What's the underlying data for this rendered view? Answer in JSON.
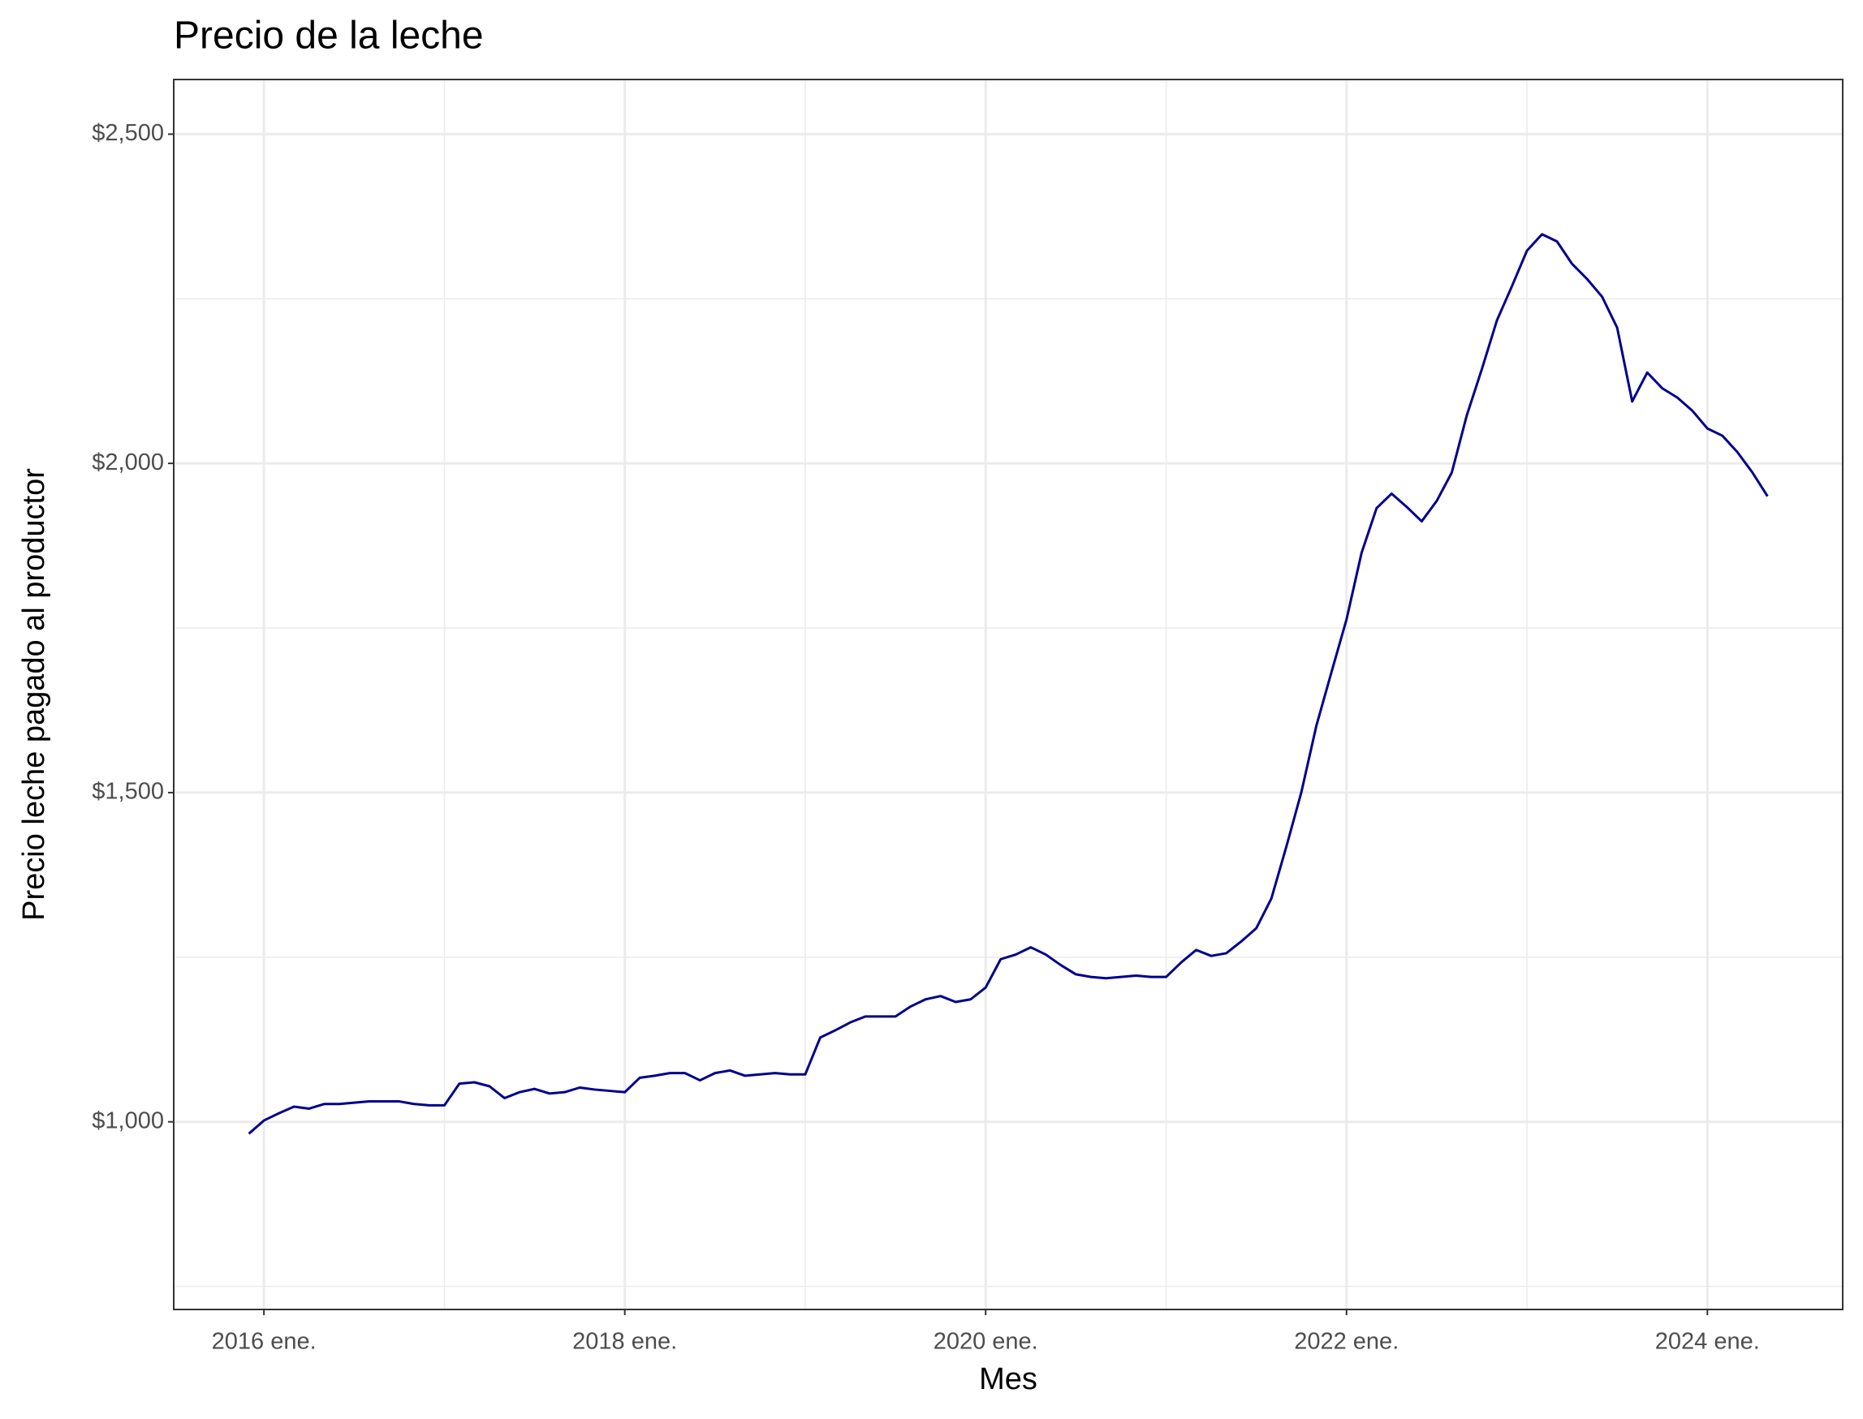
{
  "chart_data": {
    "type": "line",
    "title": "Precio de la leche",
    "x_label": "Mes",
    "y_label": "Precio leche pagado al productor",
    "x": [
      "2015-12",
      "2016-01",
      "2016-02",
      "2016-03",
      "2016-04",
      "2016-05",
      "2016-06",
      "2016-07",
      "2016-08",
      "2016-09",
      "2016-10",
      "2016-11",
      "2016-12",
      "2017-01",
      "2017-02",
      "2017-03",
      "2017-04",
      "2017-05",
      "2017-06",
      "2017-07",
      "2017-08",
      "2017-09",
      "2017-10",
      "2017-11",
      "2017-12",
      "2018-01",
      "2018-02",
      "2018-03",
      "2018-04",
      "2018-05",
      "2018-06",
      "2018-07",
      "2018-08",
      "2018-09",
      "2018-10",
      "2018-11",
      "2018-12",
      "2019-01",
      "2019-02",
      "2019-03",
      "2019-04",
      "2019-05",
      "2019-06",
      "2019-07",
      "2019-08",
      "2019-09",
      "2019-10",
      "2019-11",
      "2019-12",
      "2020-01",
      "2020-02",
      "2020-03",
      "2020-04",
      "2020-05",
      "2020-06",
      "2020-07",
      "2020-08",
      "2020-09",
      "2020-10",
      "2020-11",
      "2020-12",
      "2021-01",
      "2021-02",
      "2021-03",
      "2021-04",
      "2021-05",
      "2021-06",
      "2021-07",
      "2021-08",
      "2021-09",
      "2021-10",
      "2021-11",
      "2021-12",
      "2022-01",
      "2022-02",
      "2022-03",
      "2022-04",
      "2022-05",
      "2022-06",
      "2022-07",
      "2022-08",
      "2022-09",
      "2022-10",
      "2022-11",
      "2022-12",
      "2023-01",
      "2023-02",
      "2023-03",
      "2023-04",
      "2023-05",
      "2023-06",
      "2023-07",
      "2023-08",
      "2023-09",
      "2023-10",
      "2023-11",
      "2023-12",
      "2024-01",
      "2024-02",
      "2024-03",
      "2024-04",
      "2024-05"
    ],
    "series": [
      {
        "name": "Precio leche pagado al productor",
        "color": "#00008b",
        "values": [
          982,
          1002,
          1013,
          1023,
          1020,
          1027,
          1027,
          1029,
          1031,
          1031,
          1031,
          1027,
          1025,
          1025,
          1058,
          1060,
          1054,
          1036,
          1045,
          1050,
          1043,
          1045,
          1052,
          1049,
          1047,
          1045,
          1067,
          1070,
          1074,
          1074,
          1063,
          1074,
          1078,
          1070,
          1072,
          1074,
          1072,
          1072,
          1128,
          1139,
          1151,
          1160,
          1160,
          1160,
          1175,
          1186,
          1191,
          1182,
          1186,
          1204,
          1247,
          1254,
          1265,
          1254,
          1238,
          1224,
          1220,
          1218,
          1220,
          1222,
          1220,
          1220,
          1242,
          1261,
          1252,
          1256,
          1274,
          1294,
          1339,
          1418,
          1501,
          1602,
          1683,
          1763,
          1864,
          1932,
          1954,
          1934,
          1912,
          1943,
          1986,
          2073,
          2143,
          2217,
          2269,
          2323,
          2348,
          2337,
          2303,
          2280,
          2253,
          2206,
          2094,
          2138,
          2114,
          2100,
          2080,
          2053,
          2042,
          2017,
          1986,
          1950
        ]
      }
    ],
    "xlim": [
      "2015-07",
      "2024-10"
    ],
    "xticks": [
      {
        "value": "2016-01",
        "label": "2016 ene."
      },
      {
        "value": "2018-01",
        "label": "2018 ene."
      },
      {
        "value": "2020-01",
        "label": "2020 ene."
      },
      {
        "value": "2022-01",
        "label": "2022 ene."
      },
      {
        "value": "2024-01",
        "label": "2024 ene."
      }
    ],
    "x_minor_ticks": [
      "2017-01",
      "2019-01",
      "2021-01",
      "2023-01"
    ],
    "ylim": [
      715,
      2583
    ],
    "yticks": [
      {
        "value": 1000,
        "label": "$1,000"
      },
      {
        "value": 1500,
        "label": "$1,500"
      },
      {
        "value": 2000,
        "label": "$2,000"
      },
      {
        "value": 2500,
        "label": "$2,500"
      }
    ],
    "y_minor_ticks": [
      750,
      1250,
      1750,
      2250
    ],
    "grid": true
  }
}
